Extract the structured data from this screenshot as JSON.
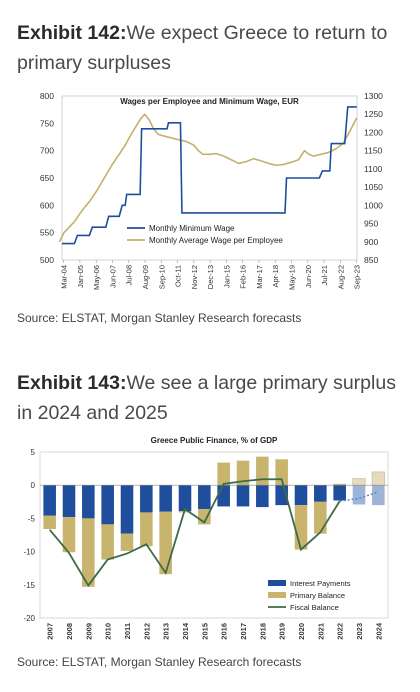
{
  "exhibit1": {
    "number": "Exhibit 142:",
    "title": "We expect Greece to return to primary surpluses",
    "source": "Source: ELSTAT, Morgan Stanley Research forecasts"
  },
  "exhibit2": {
    "number": "Exhibit 143:",
    "title": "We see a large primary surplus in 2024 and 2025",
    "source": "Source: ELSTAT, Morgan Stanley Research forecasts"
  },
  "chart_data": [
    {
      "type": "line",
      "title": "Wages per Employee and Minimum Wage, EUR",
      "x_tick_labels": [
        "Mar-04",
        "Jan-05",
        "May-06",
        "Jun-07",
        "Jul-08",
        "Aug-09",
        "Sep-10",
        "Oct-11",
        "Nov-12",
        "Dec-13",
        "Jan-15",
        "Feb-16",
        "Mar-17",
        "Apr-18",
        "May-19",
        "Jun-20",
        "Jul-21",
        "Aug-22",
        "Sep-23"
      ],
      "y_left": {
        "lim": [
          500,
          800
        ],
        "ticks": [
          500,
          550,
          600,
          650,
          700,
          750,
          800
        ]
      },
      "y_right": {
        "lim": [
          850,
          1300
        ],
        "ticks": [
          850,
          900,
          950,
          1000,
          1050,
          1100,
          1150,
          1200,
          1250,
          1300
        ]
      },
      "legend_position": "bottom-left",
      "colors": {
        "minimum_wage": "#1f4e9c",
        "average_wage": "#c4b06a"
      },
      "series": [
        {
          "name": "Monthly Minimum Wage",
          "axis": "left",
          "points": [
            [
              2004.17,
              530
            ],
            [
              2005.0,
              530
            ],
            [
              2005.2,
              545
            ],
            [
              2006.0,
              545
            ],
            [
              2006.2,
              560
            ],
            [
              2007.1,
              560
            ],
            [
              2007.3,
              580
            ],
            [
              2008.0,
              580
            ],
            [
              2008.2,
              600
            ],
            [
              2008.4,
              600
            ],
            [
              2008.5,
              620
            ],
            [
              2009.4,
              620
            ],
            [
              2009.5,
              740
            ],
            [
              2011.2,
              740
            ],
            [
              2011.3,
              751
            ],
            [
              2012.1,
              751
            ],
            [
              2012.2,
              586
            ],
            [
              2019.1,
              586
            ],
            [
              2019.2,
              650
            ],
            [
              2021.4,
              650
            ],
            [
              2021.6,
              663
            ],
            [
              2022.1,
              663
            ],
            [
              2022.2,
              713
            ],
            [
              2023.1,
              713
            ],
            [
              2023.3,
              780
            ],
            [
              2023.9,
              780
            ]
          ]
        },
        {
          "name": "Monthly Average Wage per Employee",
          "axis": "right",
          "points": [
            [
              2004.0,
              900
            ],
            [
              2004.3,
              925
            ],
            [
              2005.0,
              955
            ],
            [
              2005.5,
              985
            ],
            [
              2006.0,
              1010
            ],
            [
              2006.5,
              1040
            ],
            [
              2007.0,
              1075
            ],
            [
              2007.5,
              1110
            ],
            [
              2008.0,
              1140
            ],
            [
              2008.4,
              1165
            ],
            [
              2008.8,
              1195
            ],
            [
              2009.1,
              1215
            ],
            [
              2009.4,
              1235
            ],
            [
              2009.7,
              1250
            ],
            [
              2010.0,
              1235
            ],
            [
              2010.3,
              1210
            ],
            [
              2010.6,
              1195
            ],
            [
              2011.0,
              1190
            ],
            [
              2011.5,
              1185
            ],
            [
              2012.0,
              1180
            ],
            [
              2012.5,
              1175
            ],
            [
              2013.0,
              1165
            ],
            [
              2013.3,
              1150
            ],
            [
              2013.6,
              1140
            ],
            [
              2014.0,
              1140
            ],
            [
              2014.5,
              1142
            ],
            [
              2015.0,
              1135
            ],
            [
              2015.5,
              1125
            ],
            [
              2016.0,
              1115
            ],
            [
              2016.5,
              1120
            ],
            [
              2017.0,
              1128
            ],
            [
              2017.5,
              1122
            ],
            [
              2018.0,
              1115
            ],
            [
              2018.5,
              1110
            ],
            [
              2019.0,
              1112
            ],
            [
              2019.5,
              1118
            ],
            [
              2020.0,
              1125
            ],
            [
              2020.4,
              1150
            ],
            [
              2020.7,
              1140
            ],
            [
              2021.0,
              1135
            ],
            [
              2021.5,
              1140
            ],
            [
              2022.0,
              1145
            ],
            [
              2022.5,
              1155
            ],
            [
              2023.0,
              1170
            ],
            [
              2023.4,
              1200
            ],
            [
              2023.9,
              1240
            ]
          ]
        }
      ]
    },
    {
      "type": "bar",
      "title": "Greece Public Finance, % of GDP",
      "categories": [
        "2007",
        "2008",
        "2009",
        "2010",
        "2011",
        "2012",
        "2013",
        "2014",
        "2015",
        "2016",
        "2017",
        "2018",
        "2019",
        "2020",
        "2021",
        "2022",
        "2023",
        "2024"
      ],
      "forecast_from": "2023",
      "ylim": [
        -20,
        5
      ],
      "yticks": [
        -20,
        -15,
        -10,
        -5,
        0,
        5
      ],
      "legend_position": "bottom-right",
      "colors": {
        "interest_payments": "#1f4e9c",
        "primary_balance": "#c9b46e",
        "fiscal_balance": "#3d6b48"
      },
      "series": [
        {
          "name": "Interest Payments",
          "type": "bar",
          "values": [
            -4.6,
            -4.8,
            -5.0,
            -5.9,
            -7.3,
            -4.1,
            -4.0,
            -3.9,
            -3.6,
            -3.2,
            -3.2,
            -3.3,
            -3.0,
            -3.0,
            -2.5,
            -2.3,
            -2.9,
            -3.0
          ]
        },
        {
          "name": "Primary Balance",
          "type": "bar",
          "values": [
            -2.0,
            -5.3,
            -10.3,
            -5.3,
            -2.6,
            -5.1,
            -9.4,
            -0.2,
            -2.3,
            3.4,
            3.7,
            4.3,
            3.9,
            -6.7,
            -4.8,
            0.2,
            1.0,
            2.0
          ]
        },
        {
          "name": "Fiscal Balance",
          "type": "line",
          "values": [
            -6.7,
            -10.2,
            -15.1,
            -11.2,
            -10.3,
            -8.9,
            -13.2,
            -3.6,
            -5.6,
            0.2,
            0.6,
            0.9,
            0.9,
            -9.7,
            -7.1,
            -2.4,
            -2.0,
            -1.0
          ]
        }
      ]
    }
  ]
}
